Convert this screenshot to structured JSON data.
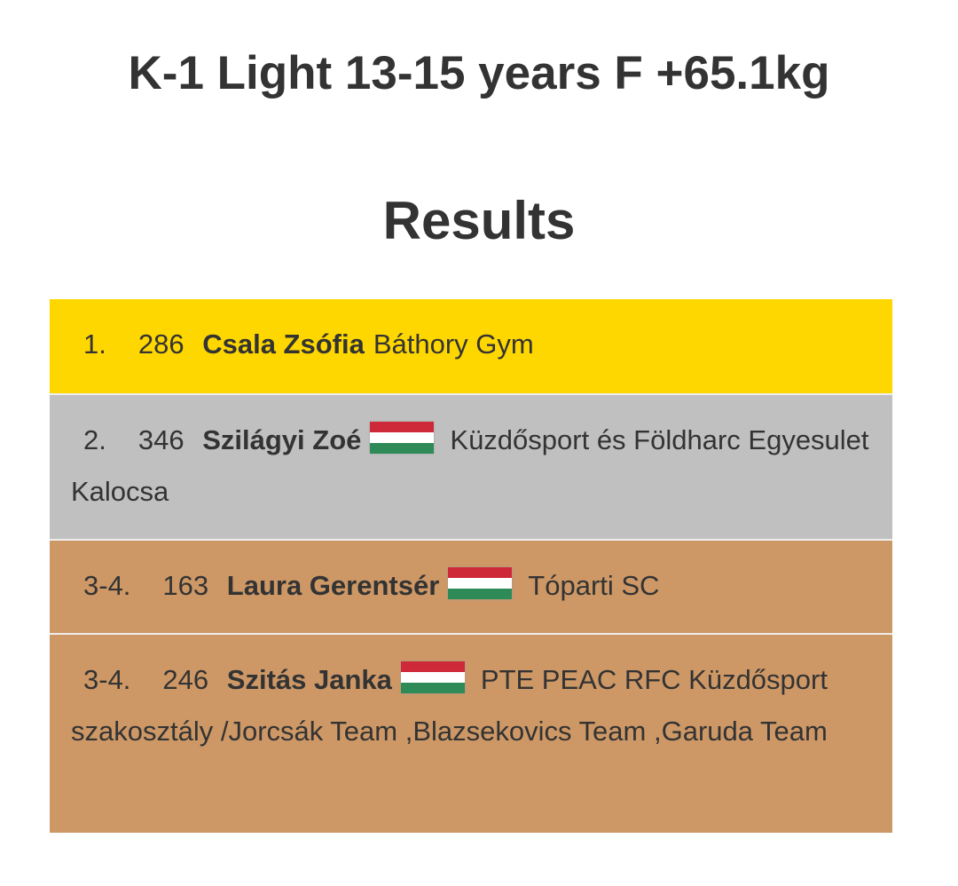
{
  "title": "K-1 Light 13-15 years F +65.1kg",
  "subtitle": "Results",
  "colors": {
    "gold": "#FFD700",
    "silver": "#C0C0C0",
    "bronze": "#CD9866",
    "flag_red": "#CE2939",
    "flag_white": "#FFFFFF",
    "flag_green": "#2E8B57"
  },
  "results": [
    {
      "rank": "1.",
      "bib": "286",
      "name": "Csala Zsófia",
      "flag": null,
      "club": "Báthory Gym"
    },
    {
      "rank": "2.",
      "bib": "346",
      "name": "Szilágyi Zoé",
      "flag": "hungary-flag-icon",
      "club": "Küzdősport és Földharc Egyesulet Kalocsa"
    },
    {
      "rank": "3-4.",
      "bib": "163",
      "name": "Laura Gerentsér",
      "flag": "hungary-flag-icon",
      "club": "Tóparti SC"
    },
    {
      "rank": "3-4.",
      "bib": "246",
      "name": "Szitás Janka",
      "flag": "hungary-flag-icon",
      "club": "PTE PEAC RFC Küzdősport szakosztály /Jorcsák Team ,Blazsekovics Team ,Garuda Team"
    }
  ]
}
